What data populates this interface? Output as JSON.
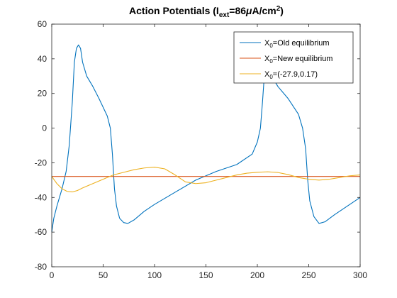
{
  "chart_data": {
    "type": "line",
    "title": {
      "prefix": "Action Potentials (I",
      "sub": "ext",
      "mid": "=86",
      "mu": "μ",
      "unit": "A/cm",
      "sup": "2",
      "suffix": ")"
    },
    "xlabel": "",
    "ylabel": "",
    "xlim": [
      0,
      300
    ],
    "ylim": [
      -80,
      60
    ],
    "xticks": [
      0,
      50,
      100,
      150,
      200,
      250,
      300
    ],
    "yticks": [
      -80,
      -60,
      -40,
      -20,
      0,
      20,
      40,
      60
    ],
    "grid": false,
    "legend_position": "top-right",
    "series": [
      {
        "name": "Old equilibrium",
        "legend_prefix": "X",
        "legend_sub": "0",
        "legend_rest": "=Old equilibrium",
        "color": "#0072BD",
        "x": [
          0,
          2,
          5,
          10,
          14,
          17,
          20,
          22,
          24,
          26,
          28,
          30,
          34,
          40,
          46,
          50,
          54,
          57,
          59,
          61,
          63,
          66,
          70,
          74,
          80,
          90,
          100,
          120,
          140,
          160,
          180,
          195,
          200,
          203,
          205,
          207,
          209,
          211,
          214,
          220,
          230,
          240,
          244,
          247,
          249,
          251,
          255,
          260,
          266,
          275,
          285,
          295,
          300
        ],
        "y": [
          -60,
          -52,
          -45,
          -35,
          -25,
          -10,
          15,
          38,
          46,
          48,
          46,
          38,
          30,
          24,
          17,
          12,
          7,
          0,
          -15,
          -35,
          -45,
          -52,
          -54.5,
          -55,
          -53,
          -48,
          -44,
          -37,
          -30,
          -25,
          -21,
          -15,
          -8,
          0,
          15,
          32,
          36,
          34,
          30,
          24,
          17,
          8,
          0,
          -12,
          -30,
          -42,
          -51,
          -55,
          -54,
          -50,
          -46,
          -42,
          -40
        ]
      },
      {
        "name": "New equilibrium",
        "legend_prefix": "X",
        "legend_sub": "0",
        "legend_rest": "=New equilibrium",
        "color": "#D95319",
        "x": [
          0,
          300
        ],
        "y": [
          -27.9,
          -27.9
        ]
      },
      {
        "name": "(-27.9,0.17)",
        "legend_prefix": "X",
        "legend_sub": "0",
        "legend_rest": "=(-27.9,0.17)",
        "color": "#EDB120",
        "x": [
          0,
          5,
          10,
          15,
          20,
          25,
          30,
          40,
          50,
          60,
          70,
          80,
          90,
          100,
          110,
          120,
          130,
          140,
          150,
          160,
          170,
          180,
          190,
          200,
          210,
          220,
          230,
          240,
          250,
          260,
          270,
          280,
          290,
          300
        ],
        "y": [
          -27.9,
          -32,
          -35,
          -36.5,
          -36.8,
          -36,
          -34.5,
          -32,
          -29.5,
          -27,
          -25.5,
          -24,
          -23,
          -22.5,
          -23.5,
          -27,
          -31,
          -32,
          -31.5,
          -30,
          -28.5,
          -27,
          -26,
          -25.5,
          -25.2,
          -25.6,
          -26.8,
          -28.5,
          -29.5,
          -30,
          -29.5,
          -28.5,
          -27.5,
          -27
        ]
      }
    ]
  }
}
